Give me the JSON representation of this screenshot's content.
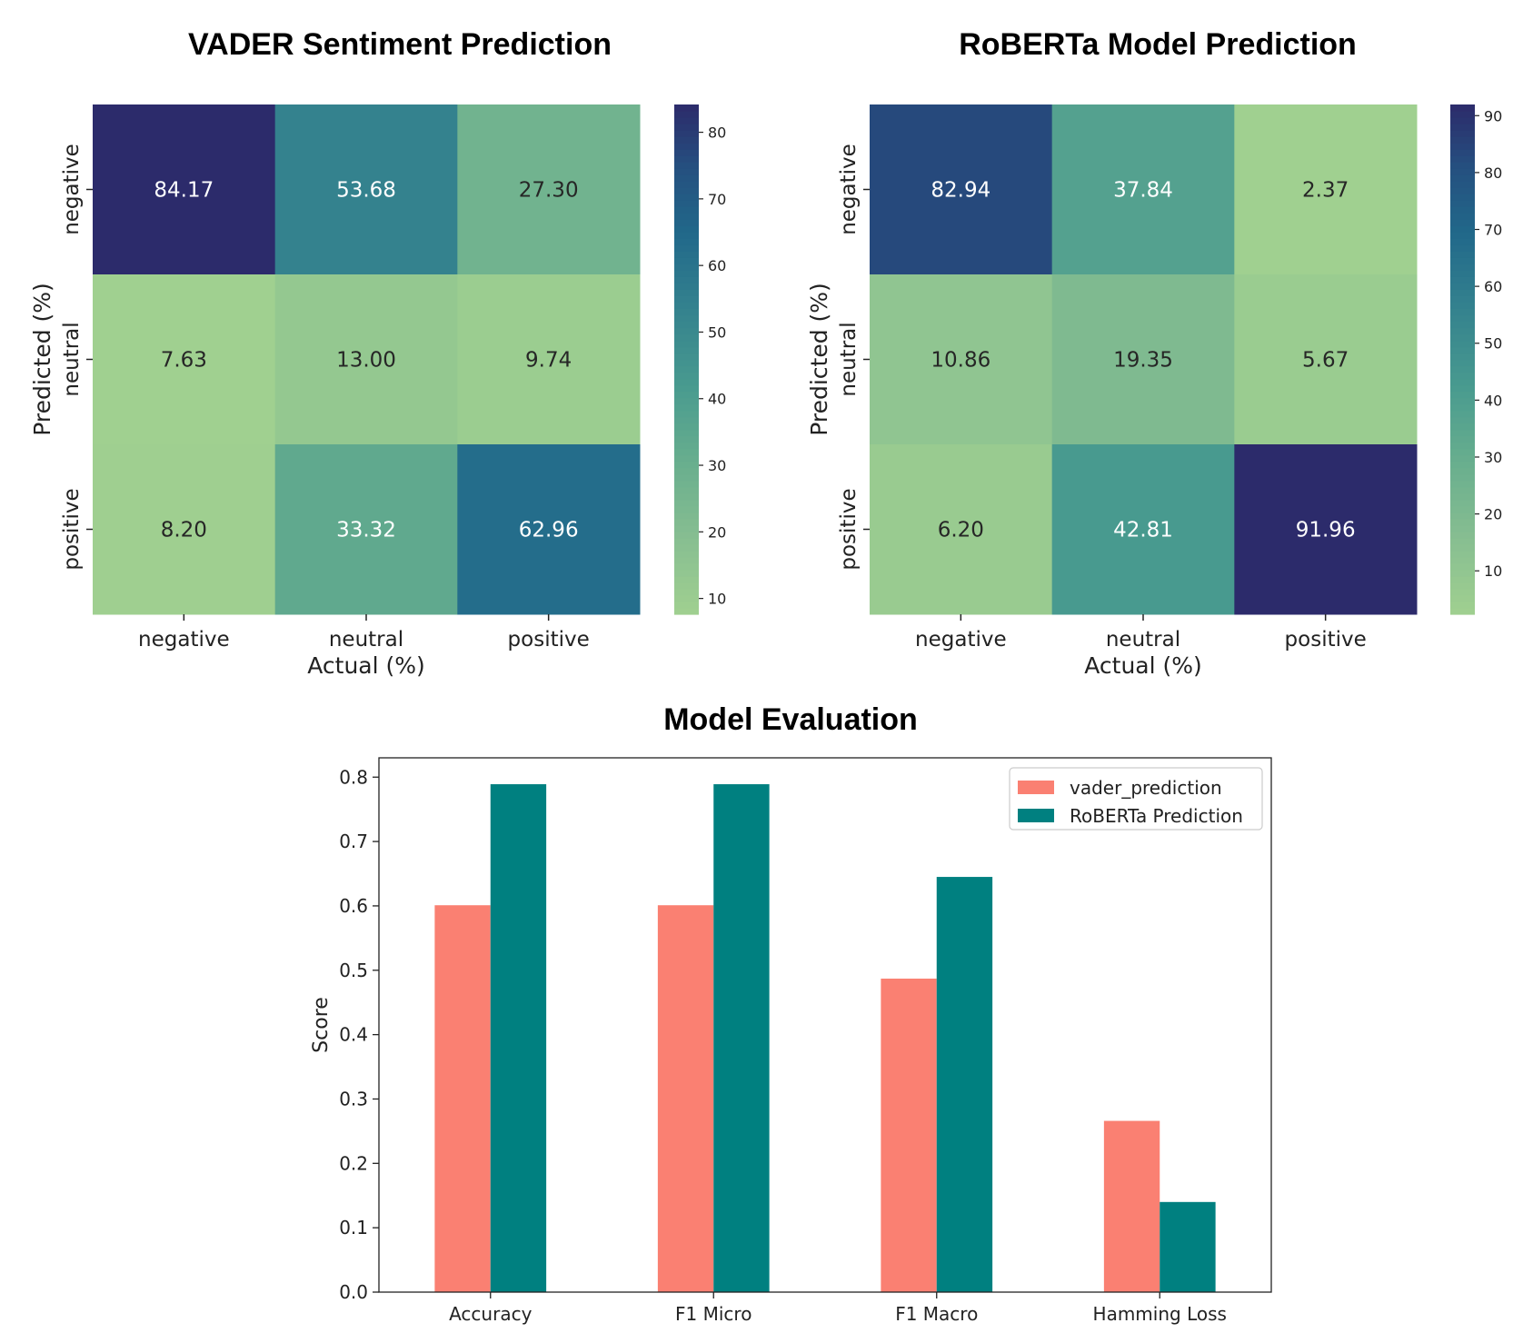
{
  "chart_data": [
    {
      "type": "heatmap",
      "title": "VADER Sentiment Prediction",
      "xlabel": "Actual (%)",
      "ylabel": "Predicted (%)",
      "x_categories": [
        "negative",
        "neutral",
        "positive"
      ],
      "y_categories": [
        "negative",
        "neutral",
        "positive"
      ],
      "values": [
        [
          84.17,
          53.68,
          27.3
        ],
        [
          7.63,
          13.0,
          9.74
        ],
        [
          8.2,
          33.32,
          62.96
        ]
      ],
      "value_labels": [
        [
          "84.17",
          "53.68",
          "27.30"
        ],
        [
          "7.63",
          "13.00",
          "9.74"
        ],
        [
          "8.20",
          "33.32",
          "62.96"
        ]
      ],
      "colorbar": {
        "range": [
          7.63,
          84.17
        ],
        "ticks": [
          10,
          20,
          30,
          40,
          50,
          60,
          70,
          80
        ]
      },
      "colormap": "crest"
    },
    {
      "type": "heatmap",
      "title": "RoBERTa Model Prediction",
      "xlabel": "Actual (%)",
      "ylabel": "Predicted (%)",
      "x_categories": [
        "negative",
        "neutral",
        "positive"
      ],
      "y_categories": [
        "negative",
        "neutral",
        "positive"
      ],
      "values": [
        [
          82.94,
          37.84,
          2.37
        ],
        [
          10.86,
          19.35,
          5.67
        ],
        [
          6.2,
          42.81,
          91.96
        ]
      ],
      "value_labels": [
        [
          "82.94",
          "37.84",
          "2.37"
        ],
        [
          "10.86",
          "19.35",
          "5.67"
        ],
        [
          "6.20",
          "42.81",
          "91.96"
        ]
      ],
      "colorbar": {
        "range": [
          2.37,
          91.96
        ],
        "ticks": [
          10,
          20,
          30,
          40,
          50,
          60,
          70,
          80,
          90
        ]
      },
      "colormap": "crest"
    },
    {
      "type": "bar",
      "title": "Model Evaluation",
      "xlabel": "",
      "ylabel": "Score",
      "categories": [
        "Accuracy",
        "F1 Micro",
        "F1 Macro",
        "Hamming Loss"
      ],
      "series": [
        {
          "name": "vader_prediction",
          "values": [
            0.601,
            0.601,
            0.487,
            0.266
          ],
          "color": "#FA8072"
        },
        {
          "name": "RoBERTa Prediction",
          "values": [
            0.789,
            0.789,
            0.645,
            0.14
          ],
          "color": "#008080"
        }
      ],
      "ylim": [
        0,
        0.83
      ],
      "yticks": [
        0.0,
        0.1,
        0.2,
        0.3,
        0.4,
        0.5,
        0.6,
        0.7,
        0.8
      ],
      "ytick_labels": [
        "0.0",
        "0.1",
        "0.2",
        "0.3",
        "0.4",
        "0.5",
        "0.6",
        "0.7",
        "0.8"
      ],
      "legend": "top-right",
      "grid": false
    }
  ]
}
